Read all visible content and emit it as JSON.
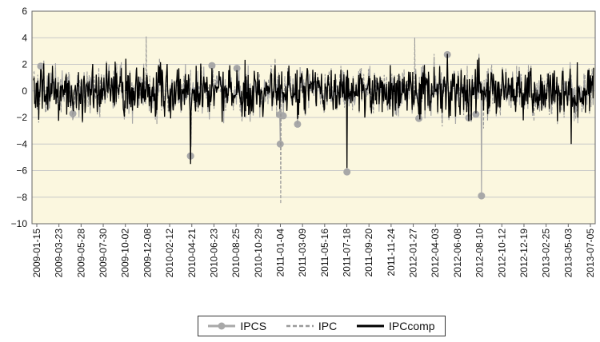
{
  "chart_data": {
    "type": "line",
    "title": "",
    "xlabel": "",
    "ylabel": "",
    "ylim": [
      -10,
      6
    ],
    "yticks": [
      6,
      4,
      2,
      0,
      -2,
      -4,
      -6,
      -8,
      -10
    ],
    "ytick_labels": [
      "6",
      "4",
      "2",
      "0",
      "−2",
      "−4",
      "−6",
      "−8",
      "−10"
    ],
    "x_tick_labels": [
      "2009-01-15",
      "2009-03-23",
      "2009-05-28",
      "2009-07-30",
      "2009-10-02",
      "2009-12-08",
      "2010-02-12",
      "2010-04-21",
      "2010-06-23",
      "2010-08-25",
      "2010-10-29",
      "2011-01-04",
      "2011-03-09",
      "2011-05-16",
      "2011-07-18",
      "2011-09-20",
      "2011-11-24",
      "2012-01-27",
      "2012-04-03",
      "2012-06-08",
      "2012-08-10",
      "2012-10-12",
      "2012-12-19",
      "2013-02-25",
      "2013-05-03",
      "2013-07-05"
    ],
    "grid": "horizontal",
    "background": "#fbf7df",
    "legend_position": "bottom",
    "series": [
      {
        "name": "IPCS",
        "style": "line-marker",
        "color": "#a8a8a8"
      },
      {
        "name": "IPC",
        "style": "dashed",
        "color": "#9a9a9a"
      },
      {
        "name": "IPCcomp",
        "style": "solid",
        "color": "#000000"
      }
    ],
    "notable_extremes": [
      {
        "date": "2010-04-21",
        "IPCS": -4.9,
        "IPC": -4.2,
        "IPCcomp": -5.5
      },
      {
        "date": "2011-01-04",
        "IPC": -8.5,
        "IPCS": -4.0
      },
      {
        "date": "2011-07-18",
        "IPCS": -6.1,
        "IPCcomp": -5.8
      },
      {
        "date": "2012-08-10",
        "IPCS": -7.9
      },
      {
        "date": "2009-12-08",
        "IPC": 4.1
      },
      {
        "date": "2012-01-27",
        "IPC": 4.0
      },
      {
        "date": "2013-05-03",
        "IPCcomp": -4.0
      }
    ]
  }
}
